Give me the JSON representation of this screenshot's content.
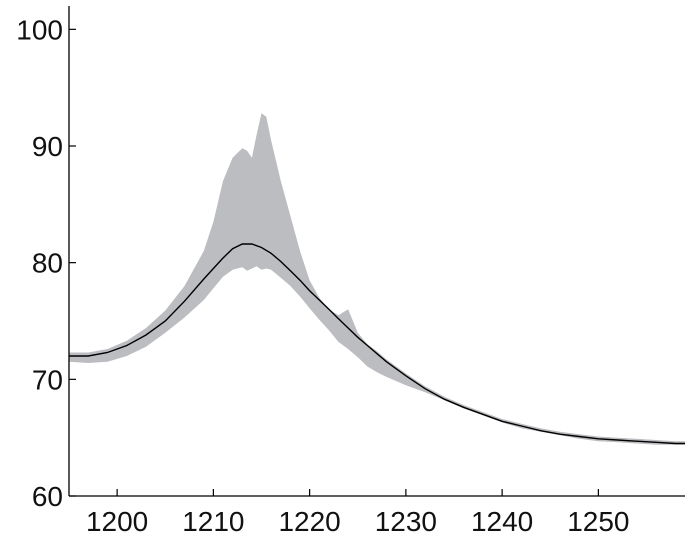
{
  "chart_data": {
    "type": "line",
    "title": "",
    "xlabel": "",
    "ylabel": "",
    "xlim": [
      1195,
      1259
    ],
    "ylim": [
      60,
      102
    ],
    "grid": false,
    "legend": "none",
    "x_ticks": [
      1200,
      1210,
      1220,
      1230,
      1240,
      1250
    ],
    "x_tick_labels": [
      "1200",
      "1210",
      "1220",
      "1230",
      "1240",
      "1250"
    ],
    "y_ticks": [
      60,
      70,
      80,
      90,
      100
    ],
    "y_tick_labels": [
      "60",
      "70",
      "80",
      "90",
      "100"
    ],
    "colors": {
      "line": "#000000",
      "band": "#bcbdc0",
      "axes": "#000000"
    },
    "series": [
      {
        "kind": "line",
        "x": [
          1195,
          1197,
          1199,
          1201,
          1203,
          1205,
          1207,
          1209,
          1211,
          1212,
          1213,
          1214,
          1215,
          1216,
          1217,
          1218,
          1219,
          1220,
          1221,
          1222,
          1223,
          1224,
          1225,
          1226,
          1227,
          1228,
          1230,
          1232,
          1234,
          1236,
          1238,
          1240,
          1242,
          1244,
          1246,
          1248,
          1250,
          1252,
          1254,
          1256,
          1258,
          1259
        ],
        "y": [
          72.0,
          72.0,
          72.3,
          72.9,
          73.8,
          75.0,
          76.7,
          78.6,
          80.4,
          81.2,
          81.6,
          81.6,
          81.3,
          80.8,
          80.1,
          79.3,
          78.5,
          77.6,
          76.8,
          76.0,
          75.2,
          74.4,
          73.6,
          72.9,
          72.2,
          71.5,
          70.3,
          69.2,
          68.3,
          67.6,
          67.0,
          66.4,
          66.0,
          65.6,
          65.3,
          65.1,
          64.9,
          64.8,
          64.7,
          64.6,
          64.5,
          64.5
        ]
      },
      {
        "kind": "band",
        "x": [
          1195,
          1197,
          1199,
          1201,
          1203,
          1205,
          1207,
          1209,
          1210,
          1211,
          1212,
          1213,
          1213.5,
          1214,
          1214.5,
          1215,
          1215.5,
          1216,
          1217,
          1218,
          1219,
          1220,
          1221,
          1222,
          1223,
          1224,
          1225,
          1226,
          1227,
          1228,
          1230,
          1232,
          1234,
          1236,
          1238,
          1240,
          1242,
          1244,
          1246,
          1248,
          1250,
          1252,
          1254,
          1256,
          1258,
          1259
        ],
        "upper": [
          72.3,
          72.3,
          72.6,
          73.3,
          74.4,
          75.9,
          78.0,
          81.0,
          83.5,
          87.0,
          89.0,
          89.8,
          89.6,
          89.0,
          91.0,
          92.8,
          92.5,
          90.5,
          87.0,
          84.0,
          81.0,
          78.5,
          77.0,
          76.0,
          75.5,
          76.0,
          74.0,
          73.0,
          72.4,
          71.7,
          70.5,
          69.4,
          68.5,
          67.8,
          67.2,
          66.6,
          66.2,
          65.8,
          65.5,
          65.3,
          65.1,
          65.0,
          64.9,
          64.8,
          64.7,
          64.7
        ],
        "lower": [
          71.5,
          71.4,
          71.5,
          72.0,
          72.8,
          74.0,
          75.3,
          76.8,
          77.8,
          78.8,
          79.4,
          79.6,
          79.3,
          79.5,
          79.7,
          79.4,
          79.5,
          79.4,
          78.7,
          78.0,
          77.1,
          76.1,
          75.1,
          74.2,
          73.2,
          72.6,
          71.9,
          71.1,
          70.6,
          70.2,
          69.5,
          68.9,
          68.2,
          67.5,
          66.9,
          66.3,
          65.8,
          65.5,
          65.2,
          64.9,
          64.7,
          64.6,
          64.5,
          64.4,
          64.4,
          64.4
        ]
      }
    ]
  }
}
